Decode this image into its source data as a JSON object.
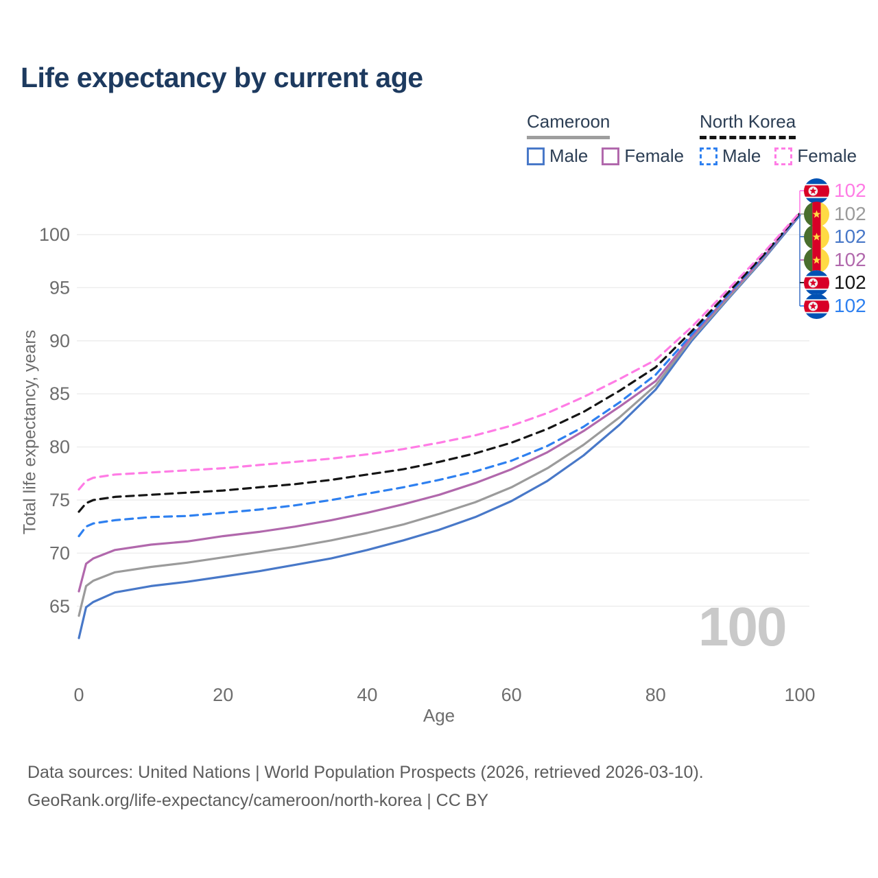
{
  "title": "Life expectancy by current age",
  "legend": {
    "groups": [
      {
        "name": "Cameroon",
        "underline_style": "solid",
        "underline_color": "#9e9e9e",
        "items": [
          {
            "label": "Male",
            "color": "#4878c8",
            "dashed": false
          },
          {
            "label": "Female",
            "color": "#b168ac",
            "dashed": false
          }
        ]
      },
      {
        "name": "North Korea",
        "underline_style": "dashed",
        "underline_color": "#141414",
        "items": [
          {
            "label": "Male",
            "color": "#2e80f0",
            "dashed": true
          },
          {
            "label": "Female",
            "color": "#ff7ce5",
            "dashed": true
          }
        ]
      }
    ]
  },
  "chart_data": {
    "type": "line",
    "title": "Life expectancy by current age",
    "xlabel": "Age",
    "ylabel": "Total life expectancy, years",
    "xlim": [
      0,
      100
    ],
    "ylim": [
      61,
      103
    ],
    "xticks": [
      0,
      20,
      40,
      60,
      80,
      100
    ],
    "yticks": [
      65,
      70,
      75,
      80,
      85,
      90,
      95,
      100
    ],
    "grid": "horizontal",
    "legend_position": "top-right",
    "age_counter_watermark": "100",
    "ages": [
      0,
      1,
      2,
      5,
      10,
      15,
      20,
      25,
      30,
      35,
      40,
      45,
      50,
      55,
      60,
      65,
      70,
      75,
      80,
      85,
      90,
      95,
      100
    ],
    "series": [
      {
        "id": "cameroon-male",
        "name": "Cameroon Male",
        "country": "Cameroon",
        "sex": "Male",
        "color": "#4878c8",
        "dashed": false,
        "values": [
          62.0,
          64.9,
          65.4,
          66.3,
          66.9,
          67.3,
          67.8,
          68.3,
          68.9,
          69.5,
          70.3,
          71.2,
          72.2,
          73.4,
          74.9,
          76.8,
          79.2,
          82.1,
          85.4,
          90.0,
          93.9,
          97.7,
          101.8
        ]
      },
      {
        "id": "cameroon-both",
        "name": "Cameroon (both sexes)",
        "country": "Cameroon",
        "sex": "Both",
        "color": "#9b9b9b",
        "dashed": false,
        "values": [
          64.1,
          66.9,
          67.4,
          68.2,
          68.7,
          69.1,
          69.6,
          70.1,
          70.6,
          71.2,
          71.9,
          72.7,
          73.7,
          74.8,
          76.2,
          78.0,
          80.2,
          82.8,
          85.8,
          90.2,
          94.0,
          97.8,
          101.9
        ]
      },
      {
        "id": "cameroon-female",
        "name": "Cameroon Female",
        "country": "Cameroon",
        "sex": "Female",
        "color": "#b168ac",
        "dashed": false,
        "values": [
          66.4,
          69.0,
          69.5,
          70.3,
          70.8,
          71.1,
          71.6,
          72.0,
          72.5,
          73.1,
          73.8,
          74.6,
          75.5,
          76.6,
          77.9,
          79.5,
          81.5,
          83.8,
          86.2,
          90.4,
          94.2,
          97.9,
          101.9
        ]
      },
      {
        "id": "north-korea-male",
        "name": "North Korea Male",
        "country": "North Korea",
        "sex": "Male",
        "color": "#2e80f0",
        "dashed": true,
        "values": [
          71.6,
          72.5,
          72.8,
          73.1,
          73.4,
          73.5,
          73.8,
          74.1,
          74.5,
          75.0,
          75.6,
          76.2,
          76.9,
          77.7,
          78.7,
          80.1,
          81.9,
          84.2,
          86.8,
          90.6,
          94.3,
          98.0,
          101.9
        ]
      },
      {
        "id": "north-korea-both",
        "name": "North Korea (both sexes)",
        "country": "North Korea",
        "sex": "Both",
        "color": "#151515",
        "dashed": true,
        "values": [
          73.9,
          74.7,
          75.0,
          75.3,
          75.5,
          75.7,
          75.9,
          76.2,
          76.5,
          76.9,
          77.4,
          77.9,
          78.6,
          79.4,
          80.4,
          81.7,
          83.3,
          85.3,
          87.5,
          90.9,
          94.5,
          98.1,
          102.0
        ]
      },
      {
        "id": "north-korea-female",
        "name": "North Korea Female",
        "country": "North Korea",
        "sex": "Female",
        "color": "#ff7ce5",
        "dashed": true,
        "values": [
          76.0,
          76.8,
          77.1,
          77.4,
          77.6,
          77.8,
          78.0,
          78.3,
          78.6,
          78.9,
          79.3,
          79.8,
          80.4,
          81.1,
          82.0,
          83.2,
          84.7,
          86.4,
          88.2,
          91.3,
          94.8,
          98.3,
          102.1
        ]
      }
    ],
    "end_value_all_series": 102,
    "end_labels": [
      {
        "flag": "north-korea",
        "series": "North Korea Female",
        "value": "102",
        "color": "#ff7ce5"
      },
      {
        "flag": "cameroon",
        "series": "Cameroon (both sexes)",
        "value": "102",
        "color": "#9b9b9b"
      },
      {
        "flag": "cameroon",
        "series": "Cameroon Male",
        "value": "102",
        "color": "#4878c8"
      },
      {
        "flag": "cameroon",
        "series": "Cameroon Female",
        "value": "102",
        "color": "#b168ac"
      },
      {
        "flag": "north-korea",
        "series": "North Korea (both sexes)",
        "value": "102",
        "color": "#151515"
      },
      {
        "flag": "north-korea",
        "series": "North Korea Male",
        "value": "102",
        "color": "#2e80f0"
      }
    ]
  },
  "footer": {
    "line1": "Data sources: United Nations | World Population Prospects (2026, retrieved 2026-03-10).",
    "line2": "GeoRank.org/life-expectancy/cameroon/north-korea | CC BY"
  }
}
